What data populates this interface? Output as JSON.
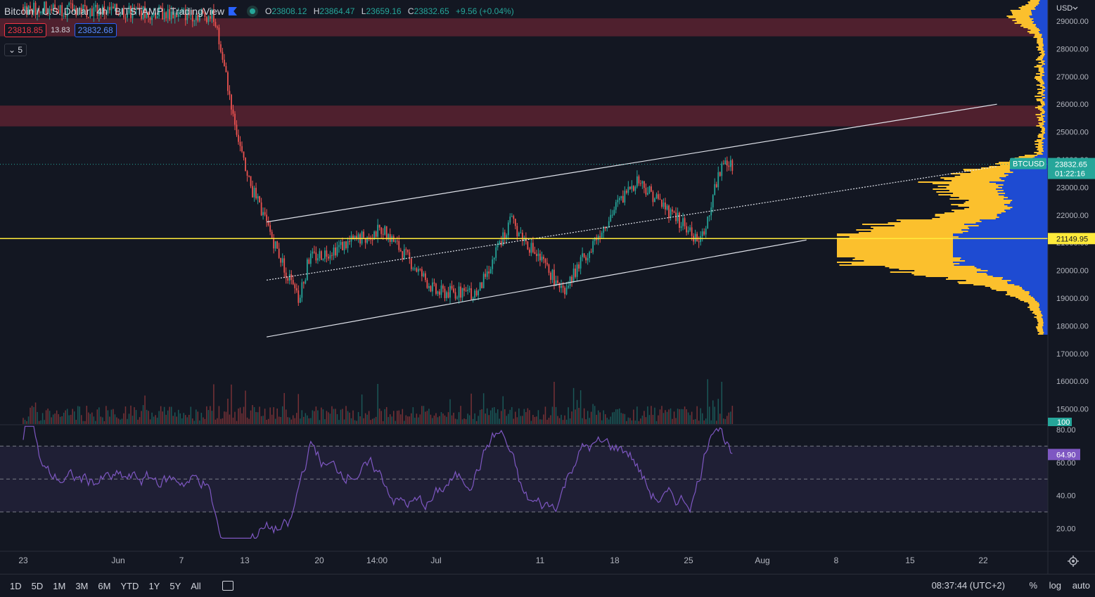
{
  "header": {
    "symbol": "Bitcoin / U.S. Dollar",
    "interval": "4h",
    "exchange": "BITSTAMP",
    "source": "TradingView",
    "o_label": "O",
    "o_value": "23808.12",
    "h_label": "H",
    "h_value": "23864.47",
    "l_label": "L",
    "l_value": "23659.16",
    "c_label": "C",
    "c_value": "23832.65",
    "change": "+9.56 (+0.04%)"
  },
  "quote": {
    "bid": "23818.85",
    "spread": "13.83",
    "ask": "23832.68"
  },
  "indicator_badge": "5",
  "colors": {
    "background": "#131722",
    "up": "#26a69a",
    "down": "#ef5350",
    "zone": "#5a2230",
    "support_line": "#ffeb3b",
    "vp_up": "#fbc02d",
    "vp_down": "#1e4bd2",
    "rsi": "#7e57c2",
    "price_badge": "#26a69a"
  },
  "bottom_bar": {
    "ranges": [
      "1D",
      "5D",
      "1M",
      "3M",
      "6M",
      "YTD",
      "1Y",
      "5Y",
      "All"
    ],
    "time": "08:37:44 (UTC+2)",
    "percent": "%",
    "log": "log",
    "auto": "auto"
  },
  "chart_data": {
    "type": "candlestick",
    "currency_menu": "USD",
    "price_axis": {
      "ticks": [
        "29000.00",
        "28000.00",
        "27000.00",
        "26000.00",
        "25000.00",
        "24000.00",
        "23000.00",
        "22000.00",
        "21000.00",
        "20000.00",
        "19000.00",
        "18000.00",
        "17000.00",
        "16000.00",
        "15000.00"
      ],
      "range": [
        14500,
        29600
      ]
    },
    "time_axis": {
      "ticks": [
        "23",
        "Jun",
        "7",
        "13",
        "20",
        "14:00",
        "Jul",
        "11",
        "18",
        "25",
        "Aug",
        "8",
        "15",
        "22"
      ]
    },
    "last_price": {
      "label": "BTCUSD",
      "value": "23832.65",
      "countdown": "01:22:16"
    },
    "horizontal_level": {
      "value": 21149.95,
      "label": "21149.95"
    },
    "resistance_zones": [
      {
        "from": 28450,
        "to": 29100
      },
      {
        "from": 25200,
        "to": 25950
      }
    ],
    "channel": {
      "upper": {
        "from": [
          "Jun 15",
          21750
        ],
        "to": [
          "Aug 23",
          26000
        ]
      },
      "middle": {
        "from": [
          "Jun 15",
          19650
        ],
        "to": [
          "Aug 23",
          23750
        ]
      },
      "lower": {
        "from": [
          "Jun 15",
          17600
        ],
        "to": [
          "Aug 5",
          21100
        ]
      }
    },
    "candles_summary": [
      {
        "date": "May 23",
        "close": 29500
      },
      {
        "date": "Jun 10",
        "close": 29200
      },
      {
        "date": "Jun 13",
        "close": 23500
      },
      {
        "date": "Jun 18",
        "close": 18900
      },
      {
        "date": "Jun 19",
        "close": 20400
      },
      {
        "date": "Jun 26",
        "close": 21500
      },
      {
        "date": "Jul 1",
        "close": 19200
      },
      {
        "date": "Jul 5",
        "close": 19200
      },
      {
        "date": "Jul 8",
        "close": 21800
      },
      {
        "date": "Jul 13",
        "close": 19300
      },
      {
        "date": "Jul 18",
        "close": 22300
      },
      {
        "date": "Jul 20",
        "close": 23300
      },
      {
        "date": "Jul 26",
        "close": 21000
      },
      {
        "date": "Jul 28",
        "close": 23800
      },
      {
        "date": "Jul 29",
        "close": 23832.65
      }
    ],
    "volume_marker": "100",
    "rsi": {
      "ticks": [
        "80.00",
        "60.00",
        "40.00",
        "20.00"
      ],
      "range": [
        10,
        85
      ],
      "upper_band": 70,
      "mid_band": 50,
      "lower_band": 30,
      "value": "64.90"
    }
  }
}
